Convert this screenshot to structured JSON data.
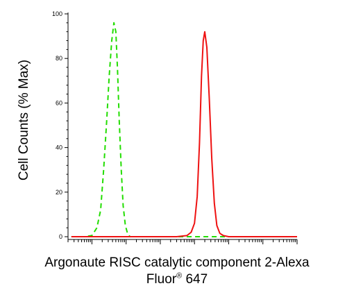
{
  "chart_data": {
    "type": "line",
    "ylabel": "Cell Counts (% Max)",
    "xlabel_line1": "Argonaute RISC catalytic component 2-Alexa",
    "xlabel_line2_pre": "Fluor",
    "xlabel_line2_reg": "®",
    "xlabel_line2_post": " 647",
    "ylim": [
      0,
      100
    ],
    "yticks": [
      "0",
      "20",
      "40",
      "60",
      "80",
      "100"
    ],
    "ytick_values": [
      0,
      20,
      40,
      60,
      80,
      100
    ],
    "xscale": "log",
    "xlim": [
      0.2,
      1000000
    ],
    "grid": false,
    "series": [
      {
        "color": "#22dd00",
        "style": "dashed",
        "x": [
          0.25,
          0.6,
          1,
          1.4,
          1.8,
          2.2,
          2.7,
          3.2,
          3.8,
          4.4,
          5.0,
          5.6,
          6.3,
          7.2,
          8.2,
          9.5,
          11,
          13,
          16,
          30,
          100,
          1000,
          10000,
          100000,
          1000000
        ],
        "y": [
          0,
          0,
          0.5,
          4,
          12,
          30,
          52,
          72,
          88,
          96,
          92,
          75,
          52,
          30,
          14,
          5,
          1.5,
          0,
          0,
          0,
          0,
          0,
          0,
          0,
          0
        ]
      },
      {
        "color": "#ee1111",
        "style": "solid",
        "x": [
          0.25,
          10,
          100,
          300,
          600,
          800,
          1000,
          1200,
          1400,
          1600,
          1800,
          2000,
          2300,
          2700,
          3200,
          3800,
          4500,
          5500,
          7000,
          10000,
          30000,
          100000,
          1000000
        ],
        "y": [
          0,
          0,
          0,
          0,
          0.5,
          2,
          6,
          18,
          42,
          72,
          88,
          92,
          85,
          62,
          35,
          15,
          5,
          1.5,
          0.5,
          0,
          0,
          0,
          0
        ]
      }
    ]
  }
}
